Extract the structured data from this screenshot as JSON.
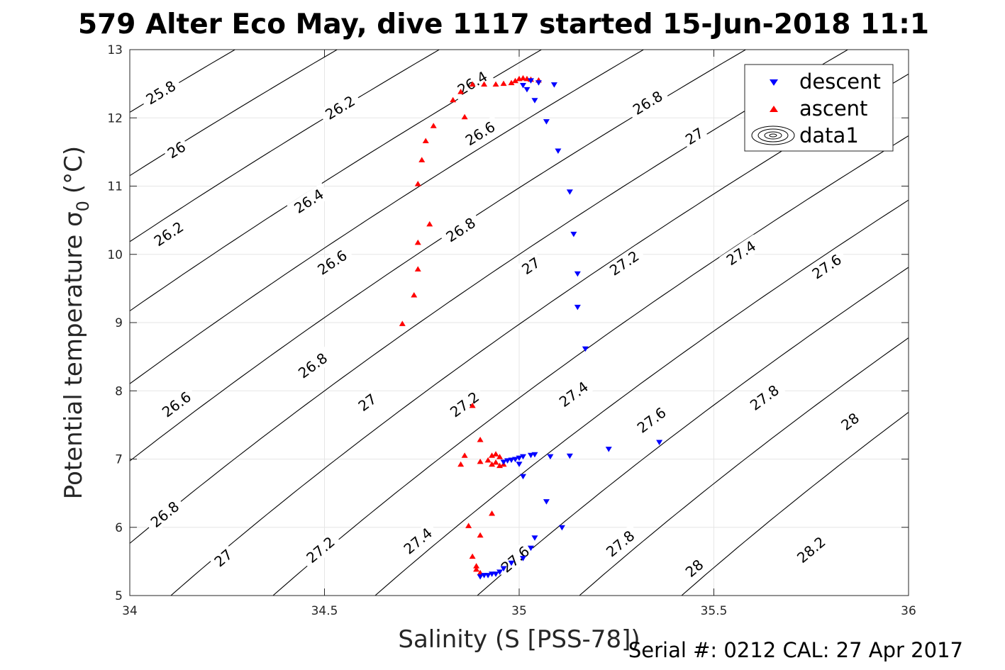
{
  "chart_data": {
    "type": "scatter",
    "title": "579 Alter Eco May, dive 1117 started 15-Jun-2018 11:1",
    "xlabel": "Salinity (S [PSS-78])",
    "ylabel": "Potential temperature σ",
    "ylabel_subscript": "0",
    "ylabel_unit": "(°C)",
    "xlim": [
      34,
      36
    ],
    "ylim": [
      5,
      13
    ],
    "xticks": [
      34,
      34.5,
      35,
      35.5,
      36
    ],
    "xtick_labels": [
      "34",
      "34.5",
      "35",
      "35.5",
      "36"
    ],
    "yticks": [
      5,
      6,
      7,
      8,
      9,
      10,
      11,
      12,
      13
    ],
    "ytick_labels": [
      "5",
      "6",
      "7",
      "8",
      "9",
      "10",
      "11",
      "12",
      "13"
    ],
    "grid": true,
    "legend": {
      "placement": "top-right",
      "entries": [
        "descent",
        "ascent",
        "data1"
      ]
    },
    "footer": "Serial #: 0212  CAL: 27 Apr 2017",
    "series": [
      {
        "name": "descent",
        "marker": "triangle-down",
        "color": "#0000ff",
        "points": [
          [
            35.01,
            12.48
          ],
          [
            35.03,
            12.55
          ],
          [
            35.05,
            12.52
          ],
          [
            35.09,
            12.49
          ],
          [
            35.02,
            12.42
          ],
          [
            35.04,
            12.26
          ],
          [
            35.07,
            11.95
          ],
          [
            35.1,
            11.52
          ],
          [
            35.13,
            10.92
          ],
          [
            35.14,
            10.3
          ],
          [
            35.15,
            9.72
          ],
          [
            35.15,
            9.23
          ],
          [
            35.17,
            8.62
          ],
          [
            35.36,
            7.25
          ],
          [
            35.23,
            7.15
          ],
          [
            35.13,
            7.05
          ],
          [
            35.08,
            7.04
          ],
          [
            35.04,
            7.07
          ],
          [
            35.03,
            7.06
          ],
          [
            35.01,
            7.04
          ],
          [
            35.0,
            7.02
          ],
          [
            34.99,
            7.0
          ],
          [
            34.98,
            6.99
          ],
          [
            34.97,
            6.98
          ],
          [
            34.96,
            6.96
          ],
          [
            35.0,
            6.93
          ],
          [
            35.01,
            6.75
          ],
          [
            35.07,
            6.38
          ],
          [
            35.11,
            6.0
          ],
          [
            35.04,
            5.85
          ],
          [
            35.03,
            5.7
          ],
          [
            35.01,
            5.55
          ],
          [
            34.98,
            5.48
          ],
          [
            34.96,
            5.4
          ],
          [
            34.95,
            5.35
          ],
          [
            34.94,
            5.32
          ],
          [
            34.93,
            5.32
          ],
          [
            34.92,
            5.3
          ],
          [
            34.91,
            5.3
          ],
          [
            34.9,
            5.28
          ]
        ]
      },
      {
        "name": "ascent",
        "marker": "triangle-up",
        "color": "#ff0000",
        "points": [
          [
            34.7,
            8.98
          ],
          [
            34.73,
            9.4
          ],
          [
            34.74,
            9.78
          ],
          [
            34.74,
            10.17
          ],
          [
            34.77,
            10.44
          ],
          [
            34.74,
            11.03
          ],
          [
            34.75,
            11.38
          ],
          [
            34.76,
            11.66
          ],
          [
            34.78,
            11.88
          ],
          [
            34.83,
            12.26
          ],
          [
            34.86,
            12.01
          ],
          [
            34.85,
            12.38
          ],
          [
            34.88,
            12.49
          ],
          [
            34.91,
            12.49
          ],
          [
            34.94,
            12.49
          ],
          [
            34.96,
            12.5
          ],
          [
            34.98,
            12.51
          ],
          [
            34.99,
            12.54
          ],
          [
            35.0,
            12.57
          ],
          [
            35.01,
            12.58
          ],
          [
            35.02,
            12.57
          ],
          [
            35.03,
            12.56
          ],
          [
            35.05,
            12.55
          ],
          [
            34.88,
            7.78
          ],
          [
            34.9,
            7.28
          ],
          [
            34.86,
            7.05
          ],
          [
            34.85,
            6.92
          ],
          [
            34.9,
            6.96
          ],
          [
            34.92,
            6.98
          ],
          [
            34.93,
            7.05
          ],
          [
            34.94,
            7.07
          ],
          [
            34.95,
            7.03
          ],
          [
            34.94,
            6.95
          ],
          [
            34.93,
            6.92
          ],
          [
            34.95,
            6.9
          ],
          [
            34.96,
            6.92
          ],
          [
            34.93,
            6.2
          ],
          [
            34.87,
            6.02
          ],
          [
            34.9,
            5.88
          ],
          [
            34.88,
            5.57
          ],
          [
            34.89,
            5.43
          ],
          [
            34.89,
            5.38
          ],
          [
            34.9,
            5.33
          ]
        ]
      }
    ],
    "contours": [
      {
        "level": 25.8,
        "label": "25.8"
      },
      {
        "level": 26.0,
        "label": "26"
      },
      {
        "level": 26.2,
        "label": "26.2"
      },
      {
        "level": 26.4,
        "label": "26.4"
      },
      {
        "level": 26.6,
        "label": "26.6"
      },
      {
        "level": 26.8,
        "label": "26.8"
      },
      {
        "level": 27.0,
        "label": "27"
      },
      {
        "level": 27.2,
        "label": "27.2"
      },
      {
        "level": 27.4,
        "label": "27.4"
      },
      {
        "level": 27.6,
        "label": "27.6"
      },
      {
        "level": 27.8,
        "label": "27.8"
      },
      {
        "level": 28.0,
        "label": "28"
      },
      {
        "level": 28.2,
        "label": "28.2"
      }
    ],
    "contour_labels": [
      {
        "level": 25.8,
        "s": 34.08,
        "t": 12.37
      },
      {
        "level": 26.0,
        "s": 34.12,
        "t": 11.53
      },
      {
        "level": 26.2,
        "s": 34.1,
        "t": 10.3
      },
      {
        "level": 26.2,
        "s": 34.54,
        "t": 12.15
      },
      {
        "level": 26.4,
        "s": 34.46,
        "t": 10.78
      },
      {
        "level": 26.4,
        "s": 34.88,
        "t": 12.51
      },
      {
        "level": 26.6,
        "s": 34.12,
        "t": 7.8
      },
      {
        "level": 26.6,
        "s": 34.52,
        "t": 9.88
      },
      {
        "level": 26.6,
        "s": 34.9,
        "t": 11.77
      },
      {
        "level": 26.8,
        "s": 34.09,
        "t": 6.19
      },
      {
        "level": 26.8,
        "s": 34.47,
        "t": 8.37
      },
      {
        "level": 26.8,
        "s": 34.85,
        "t": 10.36
      },
      {
        "level": 26.8,
        "s": 35.33,
        "t": 12.22
      },
      {
        "level": 27.0,
        "s": 34.24,
        "t": 5.55
      },
      {
        "level": 27.0,
        "s": 34.61,
        "t": 7.83
      },
      {
        "level": 27.0,
        "s": 35.03,
        "t": 9.83
      },
      {
        "level": 27.0,
        "s": 35.45,
        "t": 11.73
      },
      {
        "level": 27.2,
        "s": 34.49,
        "t": 5.67
      },
      {
        "level": 27.2,
        "s": 34.86,
        "t": 7.8
      },
      {
        "level": 27.2,
        "s": 35.27,
        "t": 9.87
      },
      {
        "level": 27.4,
        "s": 34.74,
        "t": 5.8
      },
      {
        "level": 27.4,
        "s": 35.14,
        "t": 7.95
      },
      {
        "level": 27.4,
        "s": 35.57,
        "t": 10.02
      },
      {
        "level": 27.6,
        "s": 34.99,
        "t": 5.53
      },
      {
        "level": 27.6,
        "s": 35.34,
        "t": 7.57
      },
      {
        "level": 27.6,
        "s": 35.79,
        "t": 9.82
      },
      {
        "level": 27.8,
        "s": 35.26,
        "t": 5.76
      },
      {
        "level": 27.8,
        "s": 35.63,
        "t": 7.9
      },
      {
        "level": 28.0,
        "s": 35.45,
        "t": 5.4
      },
      {
        "level": 28.0,
        "s": 35.85,
        "t": 7.55
      },
      {
        "level": 28.2,
        "s": 35.75,
        "t": 5.67
      }
    ]
  }
}
